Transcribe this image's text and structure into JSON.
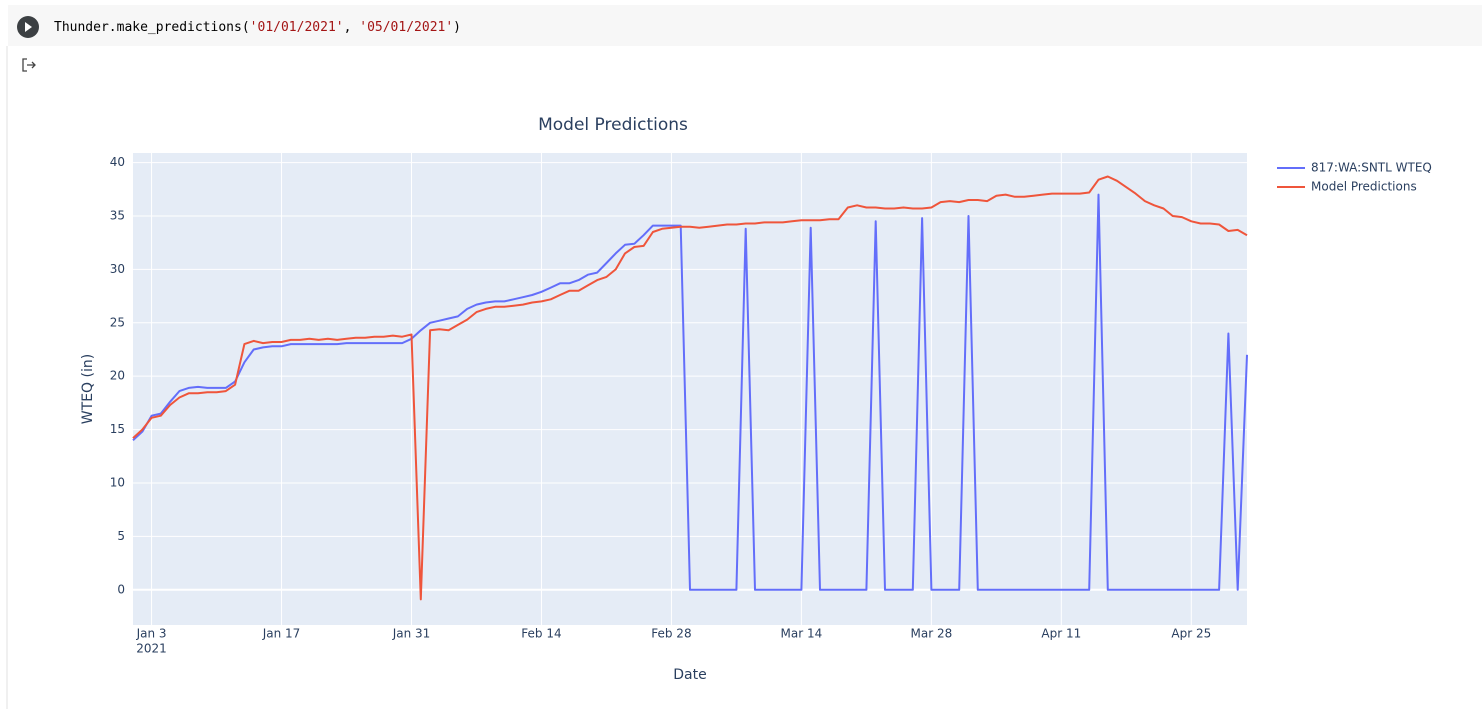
{
  "cell": {
    "code": [
      "Thunder.make_predictions(",
      "'01/01/2021'",
      ", ",
      "'05/01/2021'",
      ")"
    ]
  },
  "chart_data": {
    "type": "line",
    "title": "Model Predictions",
    "x_label": "Date",
    "y_label": "WTEQ (in)",
    "x": [
      "2021-01-01",
      "2021-01-02",
      "2021-01-03",
      "2021-01-04",
      "2021-01-05",
      "2021-01-06",
      "2021-01-07",
      "2021-01-08",
      "2021-01-09",
      "2021-01-10",
      "2021-01-11",
      "2021-01-12",
      "2021-01-13",
      "2021-01-14",
      "2021-01-15",
      "2021-01-16",
      "2021-01-17",
      "2021-01-18",
      "2021-01-19",
      "2021-01-20",
      "2021-01-21",
      "2021-01-22",
      "2021-01-23",
      "2021-01-24",
      "2021-01-25",
      "2021-01-26",
      "2021-01-27",
      "2021-01-28",
      "2021-01-29",
      "2021-01-30",
      "2021-01-31",
      "2021-02-01",
      "2021-02-02",
      "2021-02-03",
      "2021-02-04",
      "2021-02-05",
      "2021-02-06",
      "2021-02-07",
      "2021-02-08",
      "2021-02-09",
      "2021-02-10",
      "2021-02-11",
      "2021-02-12",
      "2021-02-13",
      "2021-02-14",
      "2021-02-15",
      "2021-02-16",
      "2021-02-17",
      "2021-02-18",
      "2021-02-19",
      "2021-02-20",
      "2021-02-21",
      "2021-02-22",
      "2021-02-23",
      "2021-02-24",
      "2021-02-25",
      "2021-02-26",
      "2021-02-27",
      "2021-02-28",
      "2021-03-01",
      "2021-03-02",
      "2021-03-03",
      "2021-03-04",
      "2021-03-05",
      "2021-03-06",
      "2021-03-07",
      "2021-03-08",
      "2021-03-09",
      "2021-03-10",
      "2021-03-11",
      "2021-03-12",
      "2021-03-13",
      "2021-03-14",
      "2021-03-15",
      "2021-03-16",
      "2021-03-17",
      "2021-03-18",
      "2021-03-19",
      "2021-03-20",
      "2021-03-21",
      "2021-03-22",
      "2021-03-23",
      "2021-03-24",
      "2021-03-25",
      "2021-03-26",
      "2021-03-27",
      "2021-03-28",
      "2021-03-29",
      "2021-03-30",
      "2021-03-31",
      "2021-04-01",
      "2021-04-02",
      "2021-04-03",
      "2021-04-04",
      "2021-04-05",
      "2021-04-06",
      "2021-04-07",
      "2021-04-08",
      "2021-04-09",
      "2021-04-10",
      "2021-04-11",
      "2021-04-12",
      "2021-04-13",
      "2021-04-14",
      "2021-04-15",
      "2021-04-16",
      "2021-04-17",
      "2021-04-18",
      "2021-04-19",
      "2021-04-20",
      "2021-04-21",
      "2021-04-22",
      "2021-04-23",
      "2021-04-24",
      "2021-04-25",
      "2021-04-26",
      "2021-04-27",
      "2021-04-28",
      "2021-04-29",
      "2021-04-30",
      "2021-05-01"
    ],
    "series": [
      {
        "name": "817:WA:SNTL WTEQ",
        "color": "#636efa",
        "values": [
          14,
          14.8,
          16.3,
          16.5,
          17.6,
          18.6,
          18.9,
          19.0,
          18.9,
          18.9,
          18.9,
          19.5,
          21.3,
          22.5,
          22.7,
          22.8,
          22.8,
          23.0,
          23.0,
          23.0,
          23.0,
          23.0,
          23.0,
          23.1,
          23.1,
          23.1,
          23.1,
          23.1,
          23.1,
          23.1,
          23.5,
          24.3,
          25.0,
          25.2,
          25.4,
          25.6,
          26.3,
          26.7,
          26.9,
          27.0,
          27.0,
          27.2,
          27.4,
          27.6,
          27.9,
          28.3,
          28.7,
          28.7,
          29.0,
          29.5,
          29.7,
          30.6,
          31.5,
          32.3,
          32.4,
          33.2,
          34.1,
          34.1,
          34.1,
          34.1,
          0,
          0,
          0,
          0,
          0,
          0,
          33.8,
          0,
          0,
          0,
          0,
          0,
          0,
          33.9,
          0,
          0,
          0,
          0,
          0,
          0,
          34.5,
          0,
          0,
          0,
          0,
          34.8,
          0,
          0,
          0,
          0,
          35.0,
          0,
          0,
          0,
          0,
          0,
          0,
          0,
          0,
          0,
          0,
          0,
          0,
          0,
          37.0,
          0,
          0,
          0,
          0,
          0,
          0,
          0,
          0,
          0,
          0,
          0,
          0,
          0,
          24.0,
          0,
          22.0
        ]
      },
      {
        "name": "Model Predictions",
        "color": "#ef553b",
        "values": [
          14.2,
          15,
          16.1,
          16.3,
          17.3,
          18.0,
          18.4,
          18.4,
          18.5,
          18.5,
          18.6,
          19.2,
          23.0,
          23.3,
          23.1,
          23.2,
          23.2,
          23.4,
          23.4,
          23.5,
          23.4,
          23.5,
          23.4,
          23.5,
          23.6,
          23.6,
          23.7,
          23.7,
          23.8,
          23.7,
          23.9,
          -0.9,
          24.3,
          24.4,
          24.3,
          24.8,
          25.3,
          26.0,
          26.3,
          26.5,
          26.5,
          26.6,
          26.7,
          26.9,
          27.0,
          27.2,
          27.6,
          28.0,
          28.0,
          28.5,
          29.0,
          29.3,
          30.0,
          31.5,
          32.1,
          32.2,
          33.5,
          33.8,
          33.9,
          34.0,
          34.0,
          33.9,
          34.0,
          34.1,
          34.2,
          34.2,
          34.3,
          34.3,
          34.4,
          34.4,
          34.4,
          34.5,
          34.6,
          34.6,
          34.6,
          34.7,
          34.7,
          35.8,
          36.0,
          35.8,
          35.8,
          35.7,
          35.7,
          35.8,
          35.7,
          35.7,
          35.8,
          36.3,
          36.4,
          36.3,
          36.5,
          36.5,
          36.4,
          36.9,
          37.0,
          36.8,
          36.8,
          36.9,
          37.0,
          37.1,
          37.1,
          37.1,
          37.1,
          37.2,
          38.4,
          38.7,
          38.3,
          37.7,
          37.1,
          36.4,
          36.0,
          35.7,
          35.0,
          34.9,
          34.5,
          34.3,
          34.3,
          34.2,
          33.6,
          33.7,
          33.2
        ]
      }
    ],
    "xlim": [
      "2021-01-01",
      "2021-05-01"
    ],
    "xticks": [
      {
        "value": "2021-01-03",
        "label": "Jan 3",
        "sublabel": "2021"
      },
      {
        "value": "2021-01-17",
        "label": "Jan 17"
      },
      {
        "value": "2021-01-31",
        "label": "Jan 31"
      },
      {
        "value": "2021-02-14",
        "label": "Feb 14"
      },
      {
        "value": "2021-02-28",
        "label": "Feb 28"
      },
      {
        "value": "2021-03-14",
        "label": "Mar 14"
      },
      {
        "value": "2021-03-28",
        "label": "Mar 28"
      },
      {
        "value": "2021-04-11",
        "label": "Apr 11"
      },
      {
        "value": "2021-04-25",
        "label": "Apr 25"
      }
    ],
    "ylim": [
      -3.3,
      40.9
    ],
    "yticks": [
      0,
      5,
      10,
      15,
      20,
      25,
      30,
      35,
      40
    ],
    "grid": true,
    "legend": "right"
  }
}
